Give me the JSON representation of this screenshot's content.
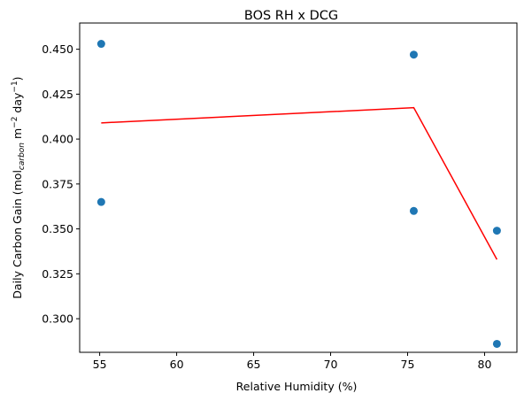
{
  "chart_data": {
    "type": "scatter",
    "title": "BOS RH x DCG",
    "xlabel": "Relative Humidity (%)",
    "ylabel": {
      "prefix": "Daily Carbon Gain (mol",
      "sub": "carbon",
      "middle": " m",
      "sup1": "−2",
      "middle2": " day",
      "sup2": "−1",
      "suffix": ")"
    },
    "xlim": [
      53.7,
      82.1
    ],
    "ylim": [
      0.2813,
      0.4646
    ],
    "xticks": [
      55,
      60,
      65,
      70,
      75,
      80
    ],
    "yticks": [
      0.3,
      0.325,
      0.35,
      0.375,
      0.4,
      0.425,
      0.45
    ],
    "ytick_labels": [
      "0.300",
      "0.325",
      "0.350",
      "0.375",
      "0.400",
      "0.425",
      "0.450"
    ],
    "grid": false,
    "points": [
      {
        "x": 55.1,
        "y": 0.453
      },
      {
        "x": 55.1,
        "y": 0.365
      },
      {
        "x": 75.4,
        "y": 0.447
      },
      {
        "x": 75.4,
        "y": 0.36
      },
      {
        "x": 80.8,
        "y": 0.349
      },
      {
        "x": 80.8,
        "y": 0.286
      }
    ],
    "line": [
      {
        "x": 55.1,
        "y": 0.409
      },
      {
        "x": 75.4,
        "y": 0.4175
      },
      {
        "x": 80.8,
        "y": 0.333
      }
    ],
    "colors": {
      "points": "#1f77b4",
      "line": "#ff0000"
    }
  }
}
